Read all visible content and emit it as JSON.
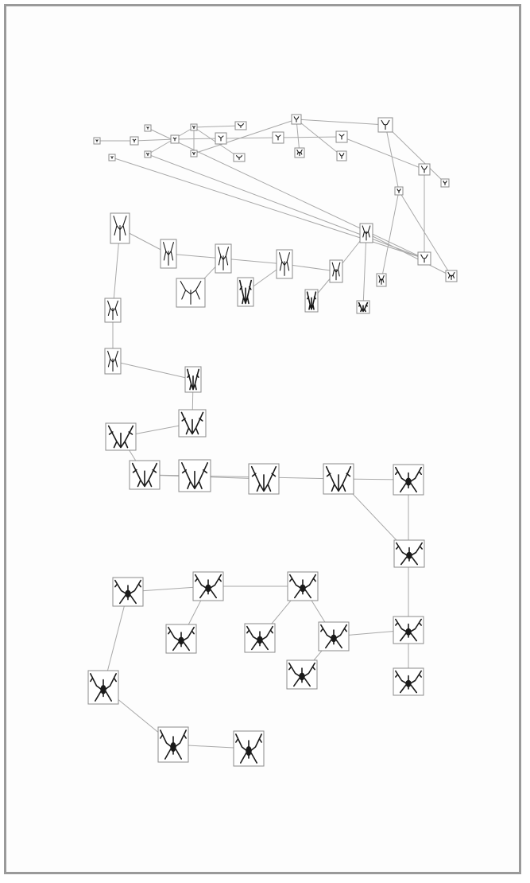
{
  "diagram": {
    "kind": "evolutionary-tree",
    "colors": {
      "frame": "#9a9a9a",
      "edge": "#a8a8a8",
      "node_border": "#8a8a8a",
      "glyph": "#1a1a1a"
    },
    "levels_note": "",
    "nodes": [
      {
        "id": "n0",
        "level": 0
      },
      {
        "id": "n1",
        "level": 0
      },
      {
        "id": "n2",
        "level": 0
      },
      {
        "id": "n3",
        "level": 0
      },
      {
        "id": "n4",
        "level": 0
      },
      {
        "id": "n5",
        "level": 0
      },
      {
        "id": "n6",
        "level": 1
      },
      {
        "id": "n7",
        "level": 1
      },
      {
        "id": "n8",
        "level": 0
      },
      {
        "id": "n9",
        "level": 0
      },
      {
        "id": "n10",
        "level": 1
      },
      {
        "id": "n11",
        "level": 1
      },
      {
        "id": "n12",
        "level": 1
      },
      {
        "id": "n13",
        "level": 1
      },
      {
        "id": "n14",
        "level": 1
      },
      {
        "id": "n15",
        "level": 1
      },
      {
        "id": "n16",
        "level": 2
      },
      {
        "id": "n17",
        "level": 1
      },
      {
        "id": "n18",
        "level": 1
      },
      {
        "id": "n19",
        "level": 1
      },
      {
        "id": "n20",
        "level": 1
      },
      {
        "id": "n21",
        "level": 2
      },
      {
        "id": "n22",
        "level": 2
      },
      {
        "id": "n23",
        "level": 2
      },
      {
        "id": "n24",
        "level": 3
      },
      {
        "id": "n25",
        "level": 2
      },
      {
        "id": "n26",
        "level": 3
      },
      {
        "id": "n27",
        "level": 2
      },
      {
        "id": "n28",
        "level": 3
      },
      {
        "id": "n29",
        "level": 2
      },
      {
        "id": "n30",
        "level": 2
      },
      {
        "id": "n31",
        "level": 2
      },
      {
        "id": "n32",
        "level": 2
      },
      {
        "id": "n33",
        "level": 2
      },
      {
        "id": "n34",
        "level": 2
      },
      {
        "id": "n35",
        "level": 3
      },
      {
        "id": "n36",
        "level": 3
      },
      {
        "id": "n37",
        "level": 3
      },
      {
        "id": "n38",
        "level": 3
      },
      {
        "id": "n39",
        "level": 3
      },
      {
        "id": "n40",
        "level": 3
      },
      {
        "id": "n41",
        "level": 3
      },
      {
        "id": "n42",
        "level": 4
      },
      {
        "id": "n43",
        "level": 4
      },
      {
        "id": "n44",
        "level": 4
      },
      {
        "id": "n45",
        "level": 4
      },
      {
        "id": "n46",
        "level": 4
      },
      {
        "id": "n47",
        "level": 4
      },
      {
        "id": "n48",
        "level": 4
      },
      {
        "id": "n49",
        "level": 4
      },
      {
        "id": "n50",
        "level": 4
      },
      {
        "id": "n51",
        "level": 4
      },
      {
        "id": "n52",
        "level": 4
      },
      {
        "id": "n53",
        "level": 4
      },
      {
        "id": "n54",
        "level": 4
      },
      {
        "id": "n55",
        "level": 4
      }
    ],
    "edges": [
      [
        "n0",
        "n1"
      ],
      [
        "n1",
        "n2"
      ],
      [
        "n2",
        "n3"
      ],
      [
        "n3",
        "n4"
      ],
      [
        "n4",
        "n5"
      ],
      [
        "n5",
        "n6"
      ],
      [
        "n6",
        "n7"
      ],
      [
        "n7",
        "n8"
      ],
      [
        "n7",
        "n9"
      ],
      [
        "n7",
        "n10"
      ],
      [
        "n10",
        "n11"
      ],
      [
        "n11",
        "n12"
      ],
      [
        "n11",
        "n13"
      ],
      [
        "n11",
        "n14"
      ],
      [
        "n12",
        "n15"
      ],
      [
        "n15",
        "n16"
      ],
      [
        "n15",
        "n17"
      ],
      [
        "n15",
        "n18"
      ],
      [
        "n18",
        "n19"
      ],
      [
        "n18",
        "n20"
      ],
      [
        "n19",
        "n21"
      ],
      [
        "n19",
        "n22"
      ],
      [
        "n21",
        "n23"
      ],
      [
        "n23",
        "n24"
      ],
      [
        "n23",
        "n25"
      ],
      [
        "n25",
        "n26"
      ],
      [
        "n25",
        "n27"
      ],
      [
        "n27",
        "n28"
      ],
      [
        "n27",
        "n29"
      ],
      [
        "n29",
        "n30"
      ],
      [
        "n29",
        "n31"
      ],
      [
        "n31",
        "n32"
      ],
      [
        "n32",
        "n33"
      ],
      [
        "n33",
        "n34"
      ],
      [
        "n34",
        "n35"
      ],
      [
        "n35",
        "n36"
      ],
      [
        "n36",
        "n37"
      ],
      [
        "n37",
        "n38"
      ],
      [
        "n38",
        "n39"
      ],
      [
        "n38",
        "n40"
      ],
      [
        "n39",
        "n41"
      ],
      [
        "n41",
        "n42"
      ],
      [
        "n41",
        "n43"
      ],
      [
        "n42",
        "n44"
      ],
      [
        "n44",
        "n45"
      ],
      [
        "n44",
        "n46"
      ],
      [
        "n46",
        "n47"
      ],
      [
        "n46",
        "n48"
      ],
      [
        "n48",
        "n49"
      ],
      [
        "n48",
        "n50"
      ],
      [
        "n50",
        "n51"
      ],
      [
        "n50",
        "n52"
      ],
      [
        "n52",
        "n53"
      ],
      [
        "n53",
        "n54"
      ],
      [
        "n54",
        "n55"
      ]
    ]
  }
}
